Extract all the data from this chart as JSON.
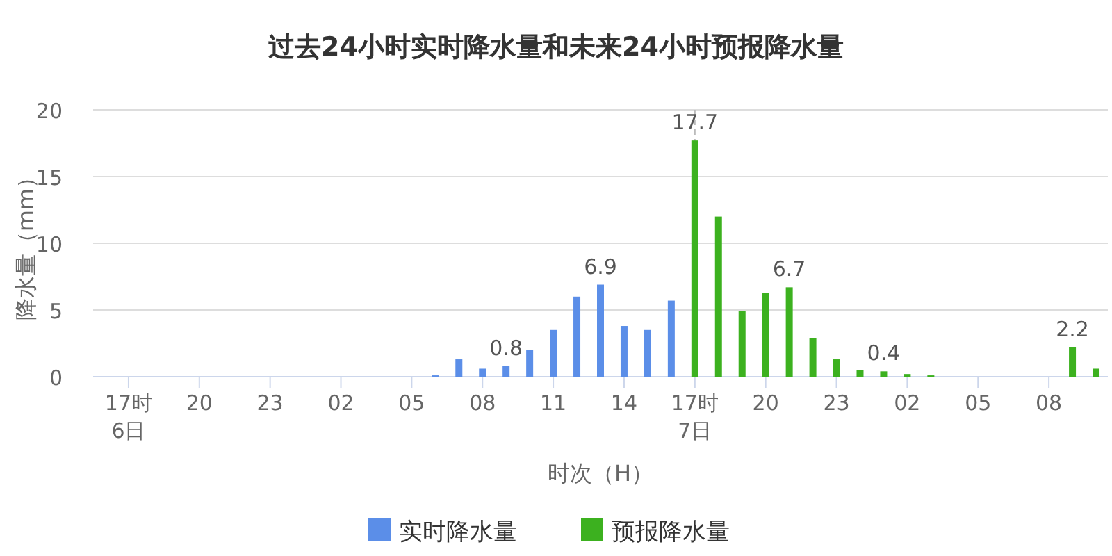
{
  "chart_data": {
    "type": "bar",
    "title": "过去24小时实时降水量和未来24小时预报降水量",
    "xlabel": "时次（H）",
    "ylabel": "降水量（mm）",
    "categories": [
      null,
      "17时\n6日",
      null,
      null,
      "20",
      null,
      null,
      "23",
      null,
      null,
      "02",
      null,
      null,
      "05",
      null,
      null,
      "08",
      null,
      null,
      "11",
      null,
      null,
      "14",
      null,
      null,
      "17时\n7日",
      null,
      null,
      "20",
      null,
      null,
      "23",
      null,
      null,
      "02",
      null,
      null,
      "05",
      null,
      null,
      "08",
      null,
      null
    ],
    "series": [
      {
        "name": "实时降水量",
        "color": "#5b8ee8",
        "values": [
          null,
          0,
          0,
          0,
          0,
          0,
          0,
          0,
          0,
          0,
          0,
          0,
          0,
          0,
          0.1,
          1.3,
          0.6,
          0.8,
          2.0,
          3.5,
          6.0,
          6.9,
          3.8,
          3.5,
          5.7,
          null,
          null,
          null,
          null,
          null,
          null,
          null,
          null,
          null,
          null,
          null,
          null,
          null,
          null,
          null,
          null,
          null,
          null
        ],
        "value_labels": [
          null,
          null,
          null,
          null,
          null,
          null,
          null,
          null,
          null,
          null,
          null,
          null,
          null,
          null,
          null,
          null,
          null,
          "0.8",
          null,
          null,
          null,
          "6.9",
          null,
          null,
          null,
          null,
          null,
          null,
          null,
          null,
          null,
          null,
          null,
          null,
          null,
          null,
          null,
          null,
          null,
          null,
          null,
          null,
          null
        ]
      },
      {
        "name": "预报降水量",
        "color": "#3cb11f",
        "values": [
          null,
          null,
          null,
          null,
          null,
          null,
          null,
          null,
          null,
          null,
          null,
          null,
          null,
          null,
          null,
          null,
          null,
          null,
          null,
          null,
          null,
          null,
          null,
          null,
          null,
          17.7,
          12.0,
          4.9,
          6.3,
          6.7,
          2.9,
          1.3,
          0.5,
          0.4,
          0.2,
          0.1,
          0,
          0,
          0,
          0,
          0,
          2.2,
          0.6
        ],
        "value_labels": [
          null,
          null,
          null,
          null,
          null,
          null,
          null,
          null,
          null,
          null,
          null,
          null,
          null,
          null,
          null,
          null,
          null,
          null,
          null,
          null,
          null,
          null,
          null,
          null,
          null,
          "17.7",
          null,
          null,
          null,
          "6.7",
          null,
          null,
          null,
          "0.4",
          null,
          null,
          null,
          null,
          null,
          null,
          null,
          "2.2",
          null
        ]
      }
    ],
    "ylim": [
      0,
      20
    ],
    "yticks": [
      0,
      5,
      10,
      15,
      20
    ],
    "grid": "y",
    "legend": "bottom",
    "ref_lines": [
      {
        "axis": "x",
        "value": "17时\n7日",
        "label": null,
        "color": "#bbbbbb",
        "line_style": "dashed"
      }
    ]
  }
}
